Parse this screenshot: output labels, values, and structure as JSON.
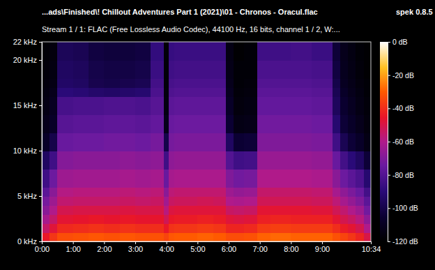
{
  "chart_data": {
    "type": "heatmap",
    "title": "...ads\\Finished\\! Chillout Adventures Part 1 (2021)\\01 - Chronos - Oracul.flac",
    "app": "spek 0.8.5",
    "subtitle": "Stream 1 / 1: FLAC (Free Lossless Audio Codec), 44100 Hz, 16 bits, channel 1 / 2, W:...",
    "grid": false,
    "xlim": [
      0,
      634
    ],
    "xticks": [
      {
        "value": 0,
        "label": "0:00"
      },
      {
        "value": 60,
        "label": "1:00"
      },
      {
        "value": 120,
        "label": "2:00"
      },
      {
        "value": 180,
        "label": "3:00"
      },
      {
        "value": 240,
        "label": "4:00"
      },
      {
        "value": 300,
        "label": "5:00"
      },
      {
        "value": 360,
        "label": "6:00"
      },
      {
        "value": 420,
        "label": "7:00"
      },
      {
        "value": 480,
        "label": "8:00"
      },
      {
        "value": 540,
        "label": "9:00"
      },
      {
        "value": 634,
        "label": "10:34"
      }
    ],
    "ylim": [
      0,
      22
    ],
    "yticks": [
      {
        "value": 0,
        "label": "0 kHz"
      },
      {
        "value": 5,
        "label": "5 kHz"
      },
      {
        "value": 10,
        "label": "10 kHz"
      },
      {
        "value": 15,
        "label": "15 kHz"
      },
      {
        "value": 20,
        "label": "20 kHz"
      },
      {
        "value": 22,
        "label": "22 kHz"
      }
    ],
    "x_bins": [
      0,
      15,
      30,
      60,
      90,
      120,
      150,
      180,
      210,
      235,
      245,
      255,
      270,
      300,
      330,
      355,
      370,
      390,
      415,
      440,
      480,
      520,
      560,
      575,
      590,
      605,
      620,
      634
    ],
    "y_bins": [
      0,
      1,
      2,
      3,
      4,
      5,
      6,
      8,
      10,
      12,
      14,
      16,
      17,
      18,
      20,
      22
    ],
    "cells": [
      [
        -45,
        -55,
        -62,
        -68,
        -72,
        -78,
        -85,
        -95,
        -108,
        -112,
        -114,
        -115,
        -116,
        -117,
        -118
      ],
      [
        -38,
        -48,
        -55,
        -60,
        -64,
        -68,
        -74,
        -85,
        -100,
        -108,
        -110,
        -112,
        -114,
        -115,
        -116
      ],
      [
        -33,
        -41,
        -47,
        -51,
        -56,
        -59,
        -64,
        -69,
        -75,
        -79,
        -83,
        -90,
        -94,
        -95,
        -97
      ],
      [
        -32,
        -40,
        -46,
        -50,
        -55,
        -58,
        -63,
        -68,
        -74,
        -78,
        -82,
        -91,
        -95,
        -96,
        -98
      ],
      [
        -31,
        -39,
        -45,
        -50,
        -55,
        -58,
        -63,
        -68,
        -74,
        -78,
        -82,
        -93,
        -99,
        -100,
        -102
      ],
      [
        -32,
        -40,
        -46,
        -50,
        -55,
        -58,
        -63,
        -68,
        -73,
        -77,
        -81,
        -94,
        -100,
        -101,
        -103
      ],
      [
        -31,
        -39,
        -45,
        -49,
        -54,
        -57,
        -62,
        -67,
        -73,
        -77,
        -81,
        -93,
        -99,
        -101,
        -103
      ],
      [
        -32,
        -40,
        -46,
        -50,
        -55,
        -58,
        -63,
        -68,
        -74,
        -78,
        -82,
        -92,
        -98,
        -100,
        -102
      ],
      [
        -32,
        -40,
        -46,
        -50,
        -54,
        -57,
        -62,
        -67,
        -72,
        -76,
        -79,
        -82,
        -84,
        -86,
        -88
      ],
      [
        -35,
        -45,
        -52,
        -58,
        -63,
        -68,
        -75,
        -85,
        -100,
        -112,
        -115,
        -116,
        -117,
        -118,
        -118
      ],
      [
        -31,
        -39,
        -45,
        -49,
        -54,
        -57,
        -62,
        -67,
        -72,
        -75,
        -78,
        -81,
        -83,
        -85,
        -87
      ],
      [
        -30,
        -38,
        -44,
        -48,
        -53,
        -56,
        -61,
        -66,
        -71,
        -74,
        -77,
        -80,
        -82,
        -84,
        -86
      ],
      [
        -30,
        -38,
        -44,
        -48,
        -53,
        -56,
        -61,
        -66,
        -71,
        -74,
        -77,
        -80,
        -82,
        -84,
        -86
      ],
      [
        -29,
        -37,
        -43,
        -48,
        -52,
        -56,
        -61,
        -66,
        -71,
        -74,
        -77,
        -80,
        -82,
        -84,
        -86
      ],
      [
        -30,
        -38,
        -44,
        -48,
        -53,
        -56,
        -61,
        -66,
        -71,
        -74,
        -77,
        -80,
        -82,
        -84,
        -86
      ],
      [
        -33,
        -42,
        -48,
        -54,
        -60,
        -64,
        -70,
        -80,
        -95,
        -105,
        -108,
        -110,
        -112,
        -113,
        -114
      ],
      [
        -33,
        -42,
        -49,
        -55,
        -61,
        -66,
        -73,
        -85,
        -105,
        -114,
        -116,
        -117,
        -118,
        -118,
        -119
      ],
      [
        -32,
        -41,
        -48,
        -54,
        -60,
        -65,
        -72,
        -84,
        -104,
        -113,
        -115,
        -116,
        -117,
        -118,
        -118
      ],
      [
        -29,
        -37,
        -43,
        -47,
        -52,
        -55,
        -60,
        -65,
        -70,
        -73,
        -76,
        -78,
        -80,
        -82,
        -85
      ],
      [
        -28,
        -36,
        -42,
        -47,
        -52,
        -55,
        -60,
        -65,
        -70,
        -73,
        -76,
        -78,
        -80,
        -82,
        -85
      ],
      [
        -29,
        -37,
        -43,
        -47,
        -52,
        -55,
        -60,
        -65,
        -70,
        -73,
        -76,
        -78,
        -80,
        -82,
        -84
      ],
      [
        -29,
        -37,
        -43,
        -48,
        -53,
        -56,
        -61,
        -66,
        -71,
        -74,
        -77,
        -79,
        -81,
        -83,
        -86
      ],
      [
        -32,
        -40,
        -47,
        -52,
        -57,
        -62,
        -68,
        -75,
        -85,
        -92,
        -96,
        -98,
        -100,
        -102,
        -104
      ],
      [
        -35,
        -44,
        -51,
        -56,
        -62,
        -67,
        -74,
        -84,
        -98,
        -104,
        -106,
        -108,
        -110,
        -111,
        -112
      ],
      [
        -38,
        -47,
        -54,
        -60,
        -66,
        -71,
        -78,
        -90,
        -104,
        -108,
        -110,
        -112,
        -113,
        -114,
        -115
      ],
      [
        -42,
        -51,
        -58,
        -64,
        -70,
        -75,
        -82,
        -95,
        -108,
        -112,
        -114,
        -115,
        -116,
        -117,
        -118
      ],
      [
        -50,
        -60,
        -67,
        -73,
        -78,
        -84,
        -92,
        -104,
        -114,
        -116,
        -117,
        -118,
        -118,
        -119,
        -119
      ]
    ],
    "colorbar": {
      "range": [
        -120,
        0
      ],
      "ticks": [
        {
          "value": 0,
          "label": "0 dB"
        },
        {
          "value": -20,
          "label": "-20 dB"
        },
        {
          "value": -40,
          "label": "-40 dB"
        },
        {
          "value": -60,
          "label": "-60 dB"
        },
        {
          "value": -80,
          "label": "-80 dB"
        },
        {
          "value": -100,
          "label": "-100 dB"
        },
        {
          "value": -120,
          "label": "-120 dB"
        }
      ]
    }
  }
}
